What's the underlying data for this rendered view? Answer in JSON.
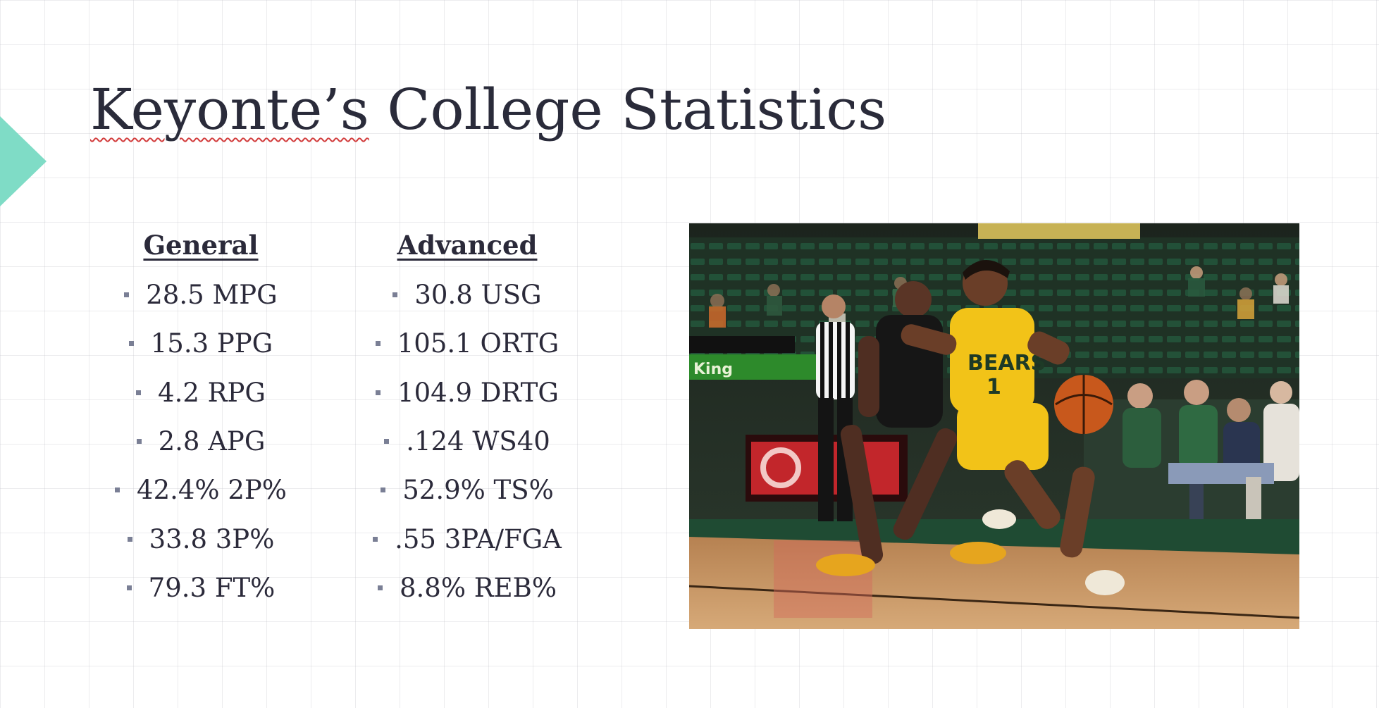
{
  "slide": {
    "title_misspelled_part": "Keyonte’s",
    "title_rest": " College Statistics"
  },
  "general": {
    "heading": "General",
    "items": [
      "28.5 MPG",
      "15.3 PPG",
      "4.2 RPG",
      "2.8 APG",
      "42.4% 2P%",
      "33.8 3P%",
      "79.3 FT%"
    ]
  },
  "advanced": {
    "heading": "Advanced",
    "items": [
      "30.8 USG",
      "105.1 ORTG",
      "104.9 DRTG",
      ".124 WS40",
      "52.9% TS%",
      ".55 3PA/FGA",
      "8.8% REB%"
    ]
  },
  "photo": {
    "jersey_text": "BEARS",
    "jersey_number": "1",
    "scoreboard_text": "King"
  },
  "colors": {
    "accent": "#7fdcc6",
    "title": "#2a2b3a",
    "bullet": "#7a7f95",
    "spellcheck": "#d23c3c"
  }
}
